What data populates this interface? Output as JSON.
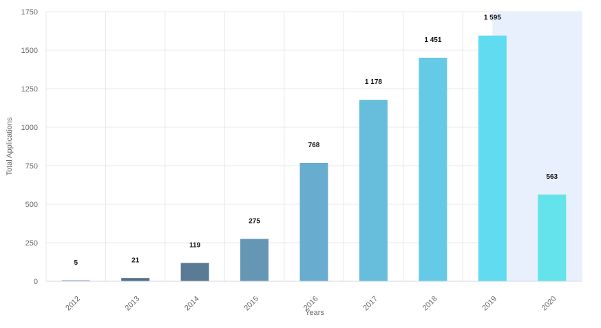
{
  "chart_data": {
    "type": "bar",
    "title": "",
    "xlabel": "Years",
    "ylabel": "Total Applications",
    "categories": [
      "2012",
      "2013",
      "2014",
      "2015",
      "2016",
      "2017",
      "2018",
      "2019",
      "2020"
    ],
    "values": [
      5,
      21,
      119,
      275,
      768,
      1178,
      1451,
      1595,
      563
    ],
    "data_labels": [
      "5",
      "21",
      "119",
      "275",
      "768",
      "1 178",
      "1 451",
      "1 595",
      "563"
    ],
    "ylim": [
      0,
      1750
    ],
    "yticks": [
      0,
      250,
      500,
      750,
      1000,
      1250,
      1500,
      1750
    ],
    "ytick_labels": [
      "0",
      "250",
      "500",
      "750",
      "1000",
      "1250",
      "1500",
      "1750"
    ],
    "grid": true,
    "legend": "none",
    "highlighted_region": [
      "2019",
      "2020"
    ],
    "colors": {
      "bars": [
        "#4e6a86",
        "#516f8b",
        "#5a7a95",
        "#6597b5",
        "#68acd0",
        "#67bedc",
        "#64cae6",
        "#61dbef",
        "#64e3eb"
      ],
      "highlight": "#e8f0fd",
      "grid": "#e8e8e8"
    }
  }
}
